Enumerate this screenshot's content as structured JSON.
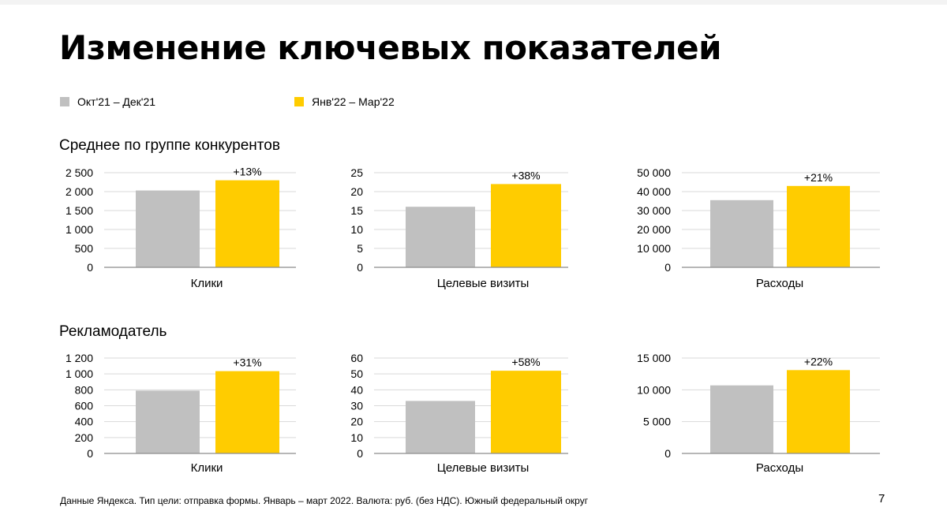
{
  "title": "Изменение ключевых показателей",
  "legend": [
    {
      "label": "Окт'21 – Дек'21",
      "color": "#c0c0c0"
    },
    {
      "label": "Янв'22 – Мар'22",
      "color": "#ffcc00"
    }
  ],
  "sections": [
    {
      "title": "Среднее по группе конкурентов"
    },
    {
      "title": "Рекламодатель"
    }
  ],
  "chart_data": [
    {
      "type": "bar",
      "categories": [
        "Клики"
      ],
      "series": [
        {
          "name": "Окт'21 – Дек'21",
          "values": [
            2030
          ]
        },
        {
          "name": "Янв'22 – Мар'22",
          "values": [
            2300
          ]
        }
      ],
      "annotation": "+13%",
      "ylim": [
        0,
        2500
      ],
      "yticks": [
        0,
        500,
        1000,
        1500,
        2000,
        2500
      ],
      "ytick_labels": [
        "0",
        "500",
        "1 000",
        "1 500",
        "2 000",
        "2 500"
      ],
      "xlabel": "Клики",
      "grid": true
    },
    {
      "type": "bar",
      "categories": [
        "Целевые визиты"
      ],
      "series": [
        {
          "name": "Окт'21 – Дек'21",
          "values": [
            16
          ]
        },
        {
          "name": "Янв'22 – Мар'22",
          "values": [
            22
          ]
        }
      ],
      "annotation": "+38%",
      "ylim": [
        0,
        25
      ],
      "yticks": [
        0,
        5,
        10,
        15,
        20,
        25
      ],
      "ytick_labels": [
        "0",
        "5",
        "10",
        "15",
        "20",
        "25"
      ],
      "xlabel": "Целевые визиты",
      "grid": true
    },
    {
      "type": "bar",
      "categories": [
        "Расходы"
      ],
      "series": [
        {
          "name": "Окт'21 – Дек'21",
          "values": [
            35500
          ]
        },
        {
          "name": "Янв'22 – Мар'22",
          "values": [
            43000
          ]
        }
      ],
      "annotation": "+21%",
      "ylim": [
        0,
        50000
      ],
      "yticks": [
        0,
        10000,
        20000,
        30000,
        40000,
        50000
      ],
      "ytick_labels": [
        "0",
        "10 000",
        "20 000",
        "30 000",
        "40 000",
        "50 000"
      ],
      "xlabel": "Расходы",
      "grid": true
    },
    {
      "type": "bar",
      "categories": [
        "Клики"
      ],
      "series": [
        {
          "name": "Окт'21 – Дек'21",
          "values": [
            790
          ]
        },
        {
          "name": "Янв'22 – Мар'22",
          "values": [
            1035
          ]
        }
      ],
      "annotation": "+31%",
      "ylim": [
        0,
        1200
      ],
      "yticks": [
        0,
        200,
        400,
        600,
        800,
        1000,
        1200
      ],
      "ytick_labels": [
        "0",
        "200",
        "400",
        "600",
        "800",
        "1 000",
        "1 200"
      ],
      "xlabel": "Клики",
      "grid": true
    },
    {
      "type": "bar",
      "categories": [
        "Целевые визиты"
      ],
      "series": [
        {
          "name": "Окт'21 – Дек'21",
          "values": [
            33
          ]
        },
        {
          "name": "Янв'22 – Мар'22",
          "values": [
            52
          ]
        }
      ],
      "annotation": "+58%",
      "ylim": [
        0,
        60
      ],
      "yticks": [
        0,
        10,
        20,
        30,
        40,
        50,
        60
      ],
      "ytick_labels": [
        "0",
        "10",
        "20",
        "30",
        "40",
        "50",
        "60"
      ],
      "xlabel": "Целевые визиты",
      "grid": true
    },
    {
      "type": "bar",
      "categories": [
        "Расходы"
      ],
      "series": [
        {
          "name": "Окт'21 – Дек'21",
          "values": [
            10700
          ]
        },
        {
          "name": "Янв'22 – Мар'22",
          "values": [
            13100
          ]
        }
      ],
      "annotation": "+22%",
      "ylim": [
        0,
        15000
      ],
      "yticks": [
        0,
        5000,
        10000,
        15000
      ],
      "ytick_labels": [
        "0",
        "5 000",
        "10 000",
        "15 000"
      ],
      "xlabel": "Расходы",
      "grid": true
    }
  ],
  "footnote": "Данные Яндекса. Тип цели: отправка формы. Январь – март 2022. Валюта: руб. (без НДС). Южный федеральный округ",
  "page_number": "7"
}
